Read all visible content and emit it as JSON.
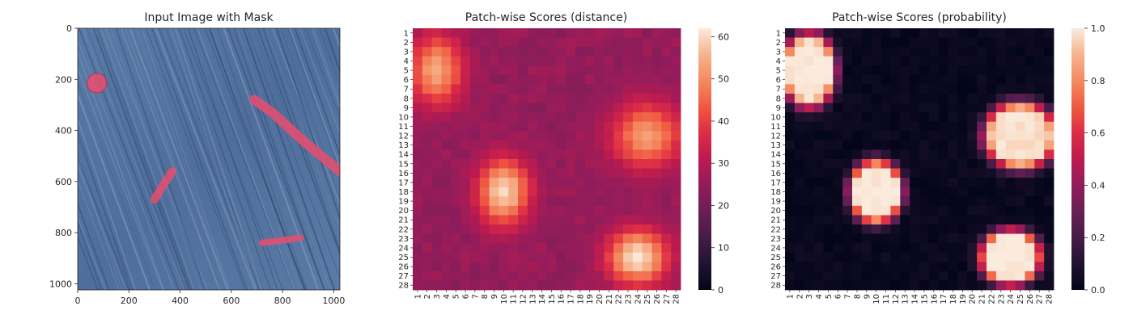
{
  "panels": {
    "image": {
      "title": "Input Image with Mask",
      "xticks": [
        "0",
        "200",
        "400",
        "600",
        "800",
        "1000"
      ],
      "yticks": [
        "0",
        "200",
        "400",
        "600",
        "800",
        "1000"
      ]
    },
    "distance": {
      "title": "Patch-wise Scores (distance)",
      "colorbar_ticks": [
        "0",
        "10",
        "20",
        "30",
        "40",
        "50",
        "60"
      ]
    },
    "probability": {
      "title": "Patch-wise Scores (probability)",
      "colorbar_ticks": [
        "0.0",
        "0.2",
        "0.4",
        "0.6",
        "0.8",
        "1.0"
      ]
    }
  },
  "chart_data": [
    {
      "type": "image",
      "title": "Input Image with Mask",
      "xlim": [
        0,
        1024
      ],
      "ylim": [
        1024,
        0
      ],
      "xticks": [
        0,
        200,
        400,
        600,
        800,
        1000
      ],
      "yticks": [
        0,
        200,
        400,
        600,
        800,
        1000
      ],
      "colors": {
        "background": "#5676a3",
        "mask": "#e84d6f"
      },
      "mask_regions": [
        {
          "shape": "circle",
          "center": [
            75,
            215
          ],
          "radius": 38
        },
        {
          "shape": "streak",
          "points": [
            [
              690,
              280
            ],
            [
              760,
              330
            ],
            [
              880,
              440
            ],
            [
              1024,
              560
            ]
          ]
        },
        {
          "shape": "streak",
          "points": [
            [
              370,
              560
            ],
            [
              330,
              620
            ],
            [
              300,
              670
            ]
          ]
        },
        {
          "shape": "streak",
          "points": [
            [
              720,
              840
            ],
            [
              800,
              830
            ],
            [
              870,
              820
            ]
          ]
        }
      ]
    },
    {
      "type": "heatmap",
      "title": "Patch-wise Scores (distance)",
      "colormap": "rocket",
      "vmin": 0,
      "vmax": 62,
      "colorbar_ticks": [
        0,
        10,
        20,
        30,
        40,
        50,
        60
      ],
      "x_tick_labels": [
        "1",
        "2",
        "3",
        "4",
        "5",
        "6",
        "7",
        "8",
        "9",
        "10",
        "11",
        "12",
        "13",
        "14",
        "15",
        "16",
        "17",
        "18",
        "19",
        "20",
        "21",
        "22",
        "23",
        "24",
        "25",
        "26",
        "27",
        "28"
      ],
      "y_tick_labels": [
        "1",
        "2",
        "3",
        "4",
        "5",
        "6",
        "7",
        "8",
        "9",
        "10",
        "11",
        "12",
        "13",
        "14",
        "15",
        "16",
        "17",
        "18",
        "19",
        "20",
        "21",
        "22",
        "23",
        "24",
        "25",
        "26",
        "27",
        "28"
      ],
      "grid_size": [
        28,
        28
      ],
      "background_value": 24,
      "hotspots": [
        {
          "row": 5,
          "col": 3,
          "rx": 2.6,
          "ry": 3.6,
          "peak": 54
        },
        {
          "row": 18,
          "col": 10,
          "rx": 2.6,
          "ry": 3.4,
          "peak": 60
        },
        {
          "row": 25,
          "col": 24,
          "rx": 3.0,
          "ry": 2.8,
          "peak": 62
        },
        {
          "row": 12,
          "col": 25,
          "rx": 3.6,
          "ry": 3.4,
          "peak": 52
        }
      ]
    },
    {
      "type": "heatmap",
      "title": "Patch-wise Scores (probability)",
      "colormap": "rocket",
      "vmin": 0,
      "vmax": 1,
      "colorbar_ticks": [
        0.0,
        0.2,
        0.4,
        0.6,
        0.8,
        1.0
      ],
      "x_tick_labels": [
        "1",
        "2",
        "3",
        "4",
        "5",
        "6",
        "7",
        "8",
        "9",
        "10",
        "11",
        "12",
        "13",
        "14",
        "15",
        "16",
        "17",
        "18",
        "19",
        "20",
        "21",
        "22",
        "23",
        "24",
        "25",
        "26",
        "27",
        "28"
      ],
      "y_tick_labels": [
        "1",
        "2",
        "3",
        "4",
        "5",
        "6",
        "7",
        "8",
        "9",
        "10",
        "11",
        "12",
        "13",
        "14",
        "15",
        "16",
        "17",
        "18",
        "19",
        "20",
        "21",
        "22",
        "23",
        "24",
        "25",
        "26",
        "27",
        "28"
      ],
      "grid_size": [
        28,
        28
      ],
      "background_value": 0.02,
      "hotspots": [
        {
          "row": 5,
          "col": 3,
          "rx": 2.8,
          "ry": 4.0,
          "peak": 1.0
        },
        {
          "row": 18,
          "col": 10,
          "rx": 2.8,
          "ry": 3.4,
          "peak": 1.0
        },
        {
          "row": 25,
          "col": 24,
          "rx": 3.2,
          "ry": 3.0,
          "peak": 1.0
        },
        {
          "row": 12,
          "col": 25,
          "rx": 3.8,
          "ry": 3.6,
          "peak": 0.98
        }
      ]
    }
  ]
}
